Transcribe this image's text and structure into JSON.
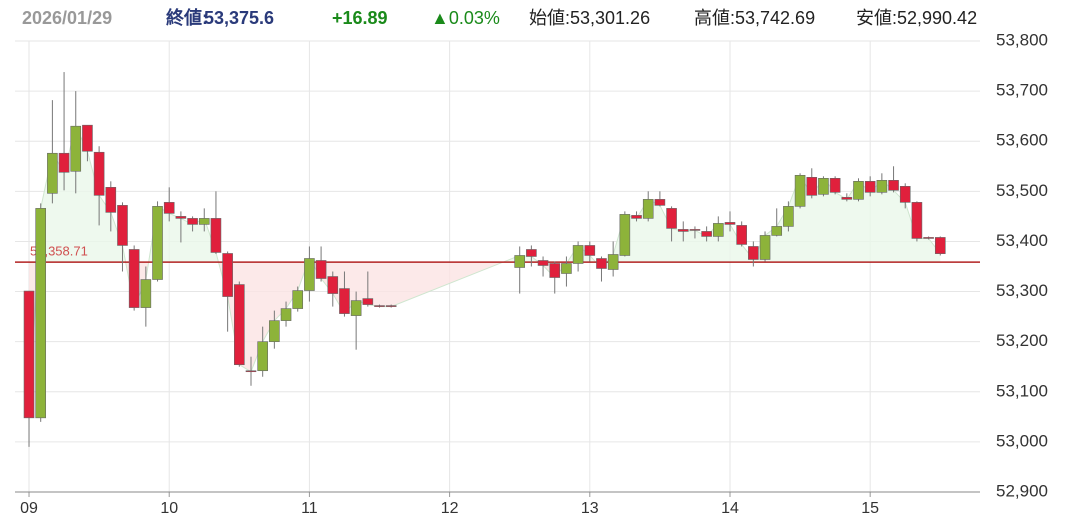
{
  "chart_data": {
    "type": "candlestick",
    "header": {
      "date": "2026/01/29",
      "close_label": "終値:",
      "close": "53,375.6",
      "change": "+16.89",
      "change_pct": "▲0.03%",
      "open": "始値:53,301.26",
      "high": "高値:53,742.69",
      "low": "安値:52,990.42"
    },
    "x": [
      540,
      545,
      550,
      555,
      560,
      565,
      570,
      575,
      580,
      585,
      590,
      595,
      600,
      605,
      610,
      615,
      620,
      625,
      630,
      635,
      640,
      645,
      650,
      655,
      660,
      665,
      670,
      675,
      680,
      685,
      690,
      695,
      750,
      755,
      760,
      765,
      770,
      775,
      780,
      785,
      790,
      795,
      800,
      805,
      810,
      815,
      820,
      825,
      830,
      835,
      840,
      845,
      850,
      855,
      860,
      865,
      870,
      875,
      880,
      885,
      890,
      895,
      900,
      905,
      910,
      915,
      920,
      925,
      930
    ],
    "open": [
      53301,
      53048,
      53496,
      53576,
      53540,
      53632,
      53578,
      53508,
      53472,
      53384,
      53268,
      53324,
      53478,
      53450,
      53446,
      53434,
      53446,
      53376,
      53314,
      53142,
      53142,
      53200,
      53242,
      53266,
      53302,
      53362,
      53330,
      53306,
      53252,
      53286,
      53272,
      53272,
      53348,
      53384,
      53362,
      53356,
      53336,
      53356,
      53392,
      53366,
      53344,
      53372,
      53452,
      53446,
      53484,
      53466,
      53424,
      53424,
      53420,
      53410,
      53438,
      53432,
      53390,
      53364,
      53412,
      53430,
      53470,
      53528,
      53494,
      53526,
      53488,
      53484,
      53520,
      53498,
      53522,
      53510,
      53478,
      53408,
      53408
    ],
    "high": [
      53301,
      53476,
      53682,
      53738,
      53700,
      53632,
      53590,
      53520,
      53478,
      53392,
      53350,
      53480,
      53508,
      53460,
      53450,
      53466,
      53500,
      53380,
      53320,
      53170,
      53230,
      53262,
      53280,
      53310,
      53390,
      53390,
      53340,
      53340,
      53300,
      53340,
      53274,
      53274,
      53390,
      53392,
      53370,
      53360,
      53370,
      53400,
      53400,
      53370,
      53400,
      53460,
      53460,
      53500,
      53500,
      53470,
      53440,
      53430,
      53430,
      53450,
      53460,
      53440,
      53400,
      53420,
      53466,
      53480,
      53536,
      53546,
      53530,
      53530,
      53496,
      53526,
      53530,
      53536,
      53550,
      53516,
      53480,
      53410,
      53410
    ],
    "low": [
      52990,
      53040,
      53476,
      53502,
      53496,
      53560,
      53432,
      53420,
      53340,
      53262,
      53230,
      53320,
      53440,
      53398,
      53420,
      53420,
      53375,
      53220,
      53150,
      53112,
      53130,
      53186,
      53230,
      53260,
      53280,
      53320,
      53270,
      53250,
      53184,
      53270,
      53268,
      53268,
      53296,
      53350,
      53330,
      53296,
      53310,
      53340,
      53360,
      53320,
      53330,
      53370,
      53440,
      53440,
      53470,
      53400,
      53400,
      53406,
      53400,
      53400,
      53420,
      53390,
      53350,
      53360,
      53410,
      53420,
      53466,
      53486,
      53490,
      53494,
      53480,
      53480,
      53490,
      53494,
      53498,
      53466,
      53400,
      53404,
      53372
    ],
    "close": [
      53048,
      53466,
      53576,
      53538,
      53630,
      53580,
      53492,
      53458,
      53392,
      53268,
      53324,
      53470,
      53456,
      53446,
      53434,
      53446,
      53378,
      53290,
      53154,
      53140,
      53200,
      53242,
      53266,
      53302,
      53366,
      53326,
      53296,
      53256,
      53282,
      53274,
      53270,
      53270,
      53372,
      53370,
      53352,
      53328,
      53356,
      53392,
      53372,
      53346,
      53374,
      53454,
      53446,
      53484,
      53472,
      53426,
      53420,
      53422,
      53410,
      53436,
      53434,
      53394,
      53364,
      53412,
      53430,
      53470,
      53532,
      53492,
      53526,
      53498,
      53484,
      53520,
      53498,
      53522,
      53502,
      53478,
      53406,
      53406,
      53375.6
    ],
    "up_color": "#8db33a",
    "down_color": "#e0203c",
    "reference": {
      "value": 53358.71,
      "label": "53,358.71"
    },
    "xlim": [
      534,
      947
    ],
    "xticks": [
      {
        "value": 540,
        "label": "09"
      },
      {
        "value": 600,
        "label": "10"
      },
      {
        "value": 660,
        "label": "11"
      },
      {
        "value": 720,
        "label": "12"
      },
      {
        "value": 780,
        "label": "13"
      },
      {
        "value": 840,
        "label": "14"
      },
      {
        "value": 900,
        "label": "15"
      }
    ],
    "ylim": [
      52900,
      53800
    ],
    "yticks": [
      {
        "value": 52900,
        "label": "52,900"
      },
      {
        "value": 53000,
        "label": "53,000"
      },
      {
        "value": 53100,
        "label": "53,100"
      },
      {
        "value": 53200,
        "label": "53,200"
      },
      {
        "value": 53300,
        "label": "53,300"
      },
      {
        "value": 53400,
        "label": "53,400"
      },
      {
        "value": 53500,
        "label": "53,500"
      },
      {
        "value": 53600,
        "label": "53,600"
      },
      {
        "value": 53700,
        "label": "53,700"
      },
      {
        "value": 53800,
        "label": "53,800"
      }
    ],
    "grid": true
  }
}
